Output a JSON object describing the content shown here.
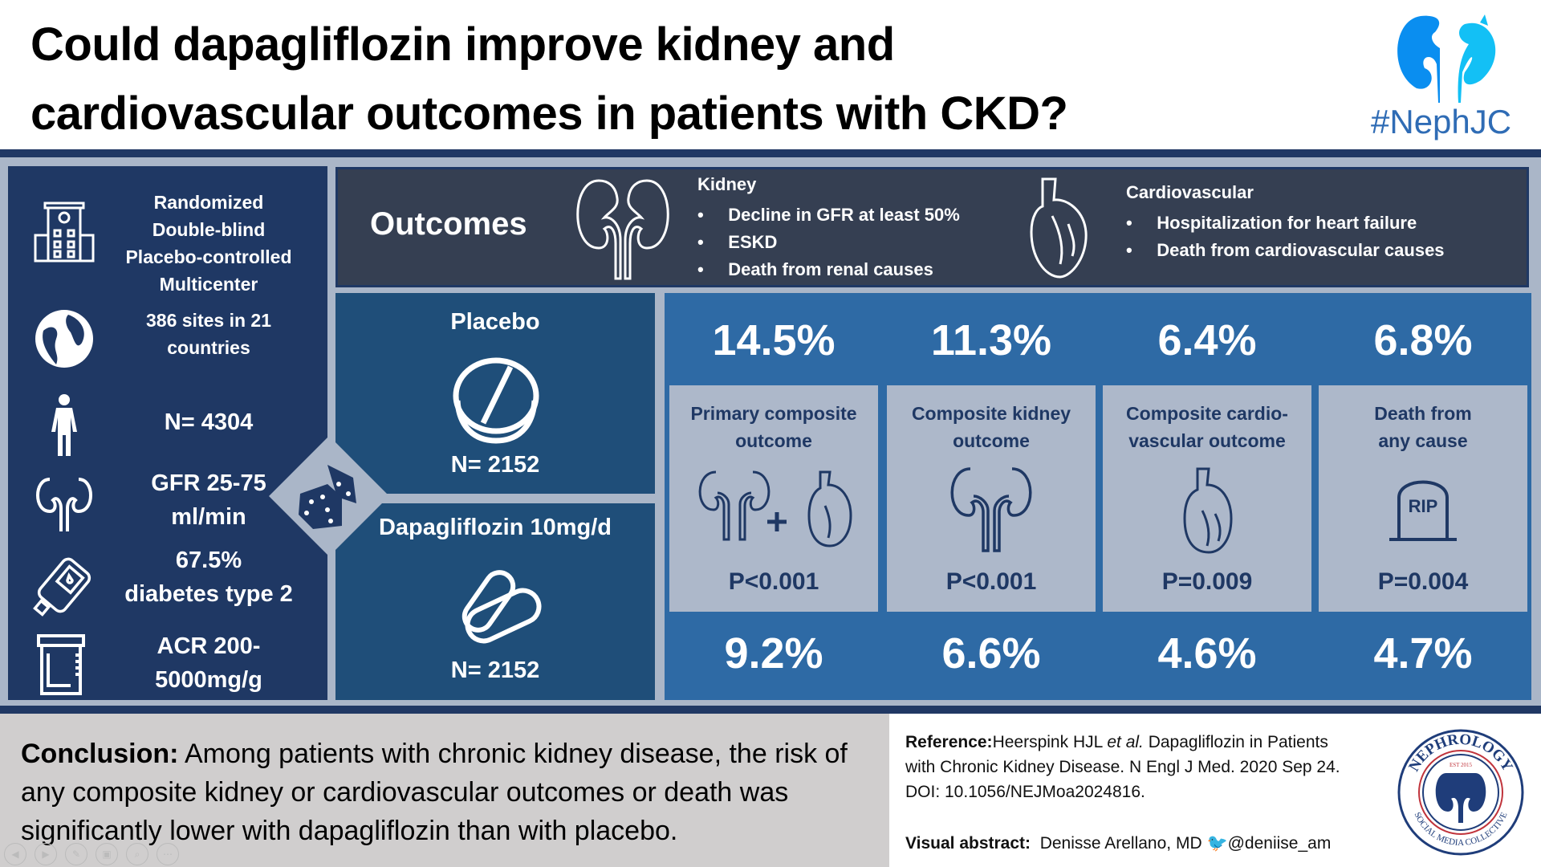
{
  "header": {
    "title_line1": "Could dapagliflozin improve kidney and",
    "title_line2": "cardiovascular outcomes in patients with CKD?",
    "logo_text": "#NephJC"
  },
  "design": {
    "items": [
      {
        "icon": "hospital-icon",
        "lines": [
          "Randomized",
          "Double-blind",
          "Placebo-controlled",
          "Multicenter"
        ]
      },
      {
        "icon": "globe-icon",
        "lines": [
          "386 sites in 21",
          "countries"
        ]
      },
      {
        "icon": "person-icon",
        "lines": [
          "N= 4304"
        ]
      },
      {
        "icon": "kidney-icon",
        "lines": [
          "GFR 25-75",
          "ml/min"
        ]
      },
      {
        "icon": "glucometer-icon",
        "lines": [
          "67.5%",
          "diabetes type 2"
        ]
      },
      {
        "icon": "urine-cup-icon",
        "lines": [
          "ACR 200-",
          "5000mg/g"
        ]
      }
    ]
  },
  "outcomes": {
    "title": "Outcomes",
    "kidney": {
      "heading": "Kidney",
      "items": [
        "Decline in GFR  at least 50%",
        "ESKD",
        "Death from renal causes"
      ]
    },
    "cardio": {
      "heading": "Cardiovascular",
      "items": [
        "Hospitalization for heart failure",
        "Death from cardiovascular causes"
      ]
    }
  },
  "arms": {
    "placebo": {
      "label": "Placebo",
      "n": "N= 2152"
    },
    "dapagliflozin": {
      "label": "Dapagliflozin 10mg/d",
      "n": "N= 2152"
    }
  },
  "results": [
    {
      "placebo": "14.5%",
      "title": [
        "Primary composite",
        "outcome"
      ],
      "icon": "kidney-plus-heart-icon",
      "p": "P<0.001",
      "dapagliflozin": "9.2%"
    },
    {
      "placebo": "11.3%",
      "title": [
        "Composite kidney",
        "outcome"
      ],
      "icon": "kidney-icon",
      "p": "P<0.001",
      "dapagliflozin": "6.6%"
    },
    {
      "placebo": "6.4%",
      "title": [
        "Composite cardio-",
        "vascular outcome"
      ],
      "icon": "heart-icon",
      "p": "P=0.009",
      "dapagliflozin": "4.6%"
    },
    {
      "placebo": "6.8%",
      "title": [
        "Death from",
        "any cause"
      ],
      "icon": "tombstone-icon",
      "p": "P=0.004",
      "dapagliflozin": "4.7%",
      "tomb_text": "RIP"
    }
  ],
  "conclusion": {
    "label": "Conclusion:",
    "text": " Among patients with chronic kidney disease, the risk of any composite kidney or cardiovascular outcomes or death was significantly lower with dapagliflozin than with placebo."
  },
  "reference": {
    "label": "Reference:",
    "authors": "Heerspink HJL ",
    "etal": "et al.",
    "line1_rest": " Dapagliflozin in Patients",
    "line2": "with Chronic Kidney Disease. N Engl J Med. 2020 Sep 24.",
    "line3": "DOI: 10.1056/NEJMoa2024816.",
    "visual_label": "Visual abstract:",
    "visual_author": "Denisse Arellano, MD",
    "twitter": "@deniise_am"
  },
  "seal": {
    "top": "NEPHROLOGY",
    "est": "EST 2015",
    "bottom": "SOCIAL MEDIA COLLECTIVE"
  },
  "colors": {
    "navy": "#1f3864",
    "mid_blue": "#1f4e79",
    "result_blue": "#2e6aa5",
    "card_gray": "#adb8ca",
    "outcomes_bg": "#353f52",
    "bg": "#aab6c8"
  },
  "slideshow_controls": [
    "previous",
    "next",
    "pen",
    "slides",
    "zoom",
    "more"
  ]
}
